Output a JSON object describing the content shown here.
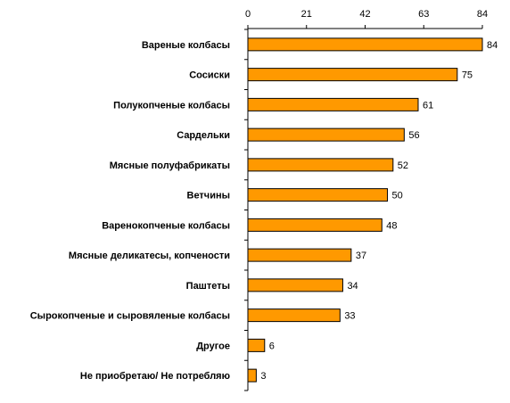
{
  "chart_data": {
    "type": "bar",
    "orientation": "horizontal",
    "categories": [
      "Вареные колбасы",
      "Сосиски",
      "Полукопченые колбасы",
      "Сардельки",
      "Мясные полуфабрикаты",
      "Ветчины",
      "Варенокопченые колбасы",
      "Мясные деликатесы, копчености",
      "Паштеты",
      "Сырокопченые и сыровяленые колбасы",
      "Другое",
      "Не приобретаю/ Не потребляю"
    ],
    "values": [
      84,
      75,
      61,
      56,
      52,
      50,
      48,
      37,
      34,
      33,
      6,
      3
    ],
    "value_labels": [
      "84",
      "75",
      "61",
      "56",
      "52",
      "50",
      "48",
      "37",
      "34",
      "33",
      "6",
      "3"
    ],
    "xlim": [
      0,
      84
    ],
    "ticks": [
      0,
      21,
      42,
      63,
      84
    ],
    "tick_labels": [
      "0",
      "21",
      "42",
      "63",
      "84"
    ],
    "axis_position": "top",
    "grid": false,
    "legend": "none",
    "bar_color": "#ff9900",
    "bar_edge_color": "#000000",
    "title": "",
    "xlabel": "",
    "ylabel": ""
  }
}
